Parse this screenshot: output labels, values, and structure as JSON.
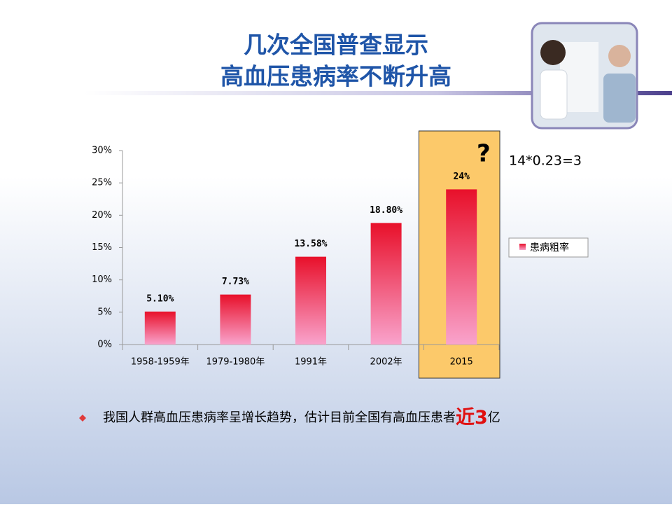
{
  "chart_data": {
    "type": "bar",
    "title": [
      "几次全国普查显示",
      "高血压患病率不断升高"
    ],
    "categories": [
      "1958-1959年",
      "1979-1980年",
      "1991年",
      "2002年",
      "2015"
    ],
    "series": [
      {
        "name": "患病粗率",
        "color": "#e8102a",
        "values": [
          5.1,
          7.73,
          13.58,
          18.8,
          24
        ],
        "value_labels": [
          "5.10%",
          "7.73%",
          "13.58%",
          "18.80%",
          "24%"
        ]
      }
    ],
    "ylim": [
      0,
      30
    ],
    "yticks": [
      {
        "value": 0,
        "label": "0%"
      },
      {
        "value": 5,
        "label": "5%"
      },
      {
        "value": 10,
        "label": "10%"
      },
      {
        "value": 15,
        "label": "15%"
      },
      {
        "value": 20,
        "label": "20%"
      },
      {
        "value": 25,
        "label": "25%"
      },
      {
        "value": 30,
        "label": "30%"
      }
    ],
    "grid": false,
    "legend": "right",
    "highlight_category": 4,
    "annotations": {
      "question": "?",
      "formula": "14*0.23=3"
    }
  },
  "footnote": {
    "text": "我国人群高血压患病率呈增长趋势，估计目前全国有高血压患者",
    "emphasis": "近3",
    "suffix": "亿"
  }
}
